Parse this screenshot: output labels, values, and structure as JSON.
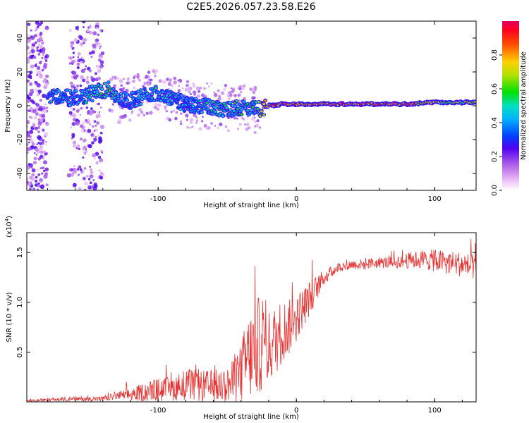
{
  "title": "C2E5.2026.057.23.58.E26",
  "chart_data": [
    {
      "type": "heatmap",
      "description": "spectrogram",
      "xlabel": "Height of straight line (km)",
      "ylabel": "Frequency (Hz)",
      "xlim": [
        -195,
        130
      ],
      "ylim": [
        -50,
        50
      ],
      "xticks": [
        -100,
        0,
        100
      ],
      "xtick_labels": [
        "-100",
        "0",
        "100"
      ],
      "yticks": [
        -40,
        -20,
        0,
        20,
        40
      ],
      "ytick_labels": [
        "-40",
        "-20",
        "0",
        "20",
        "40"
      ],
      "colorbar": {
        "label": "Normalized spectral amplitude",
        "range": [
          0,
          1
        ],
        "ticks": [
          0.0,
          0.2,
          0.4,
          0.6,
          0.8
        ],
        "tick_labels": [
          "0.0",
          "0.2",
          "0.4",
          "0.6",
          "0.8"
        ],
        "colormap": [
          "#ffffff",
          "#d8b0f0",
          "#9040e0",
          "#3000ff",
          "#0080ff",
          "#00e0e0",
          "#00e000",
          "#a0e000",
          "#ffe000",
          "#ff8000",
          "#ff0000",
          "#e00050"
        ]
      },
      "ridge": {
        "x": [
          -175,
          -160,
          -145,
          -135,
          -130,
          -120,
          -110,
          -100,
          -90,
          -80,
          -70,
          -60,
          -50,
          -40,
          -30,
          -25,
          -20,
          -10,
          0,
          20,
          40,
          60,
          80,
          100,
          120,
          130
        ],
        "y": [
          6,
          4,
          8,
          10,
          4,
          3,
          6,
          8,
          4,
          1,
          0,
          -1,
          -2,
          -1,
          -2,
          -2,
          0,
          1,
          1,
          1,
          1,
          1,
          1,
          2,
          2,
          2
        ],
        "amplitude": [
          0.45,
          0.4,
          0.5,
          0.55,
          0.45,
          0.4,
          0.45,
          0.45,
          0.45,
          0.4,
          0.45,
          0.5,
          0.45,
          0.5,
          0.5,
          0.7,
          0.8,
          0.85,
          0.85,
          0.85,
          0.85,
          0.85,
          0.85,
          0.7,
          0.65,
          0.6
        ]
      },
      "noise_bands_x": [
        [
          -195,
          -180
        ],
        [
          -165,
          -140
        ]
      ]
    },
    {
      "type": "line",
      "xlabel": "Height of straight line (km)",
      "ylabel": "SNR (10 * v/v)",
      "y_multiplier_label": "(x10",
      "y_multiplier_exp": "4",
      "xlim": [
        -195,
        130
      ],
      "ylim": [
        0,
        1.7
      ],
      "xticks": [
        -100,
        0,
        100
      ],
      "xtick_labels": [
        "-100",
        "0",
        "100"
      ],
      "yticks": [
        0.5,
        1.0,
        1.5
      ],
      "ytick_labels": [
        "0.5",
        "1.0",
        "1.5"
      ],
      "color": "#e83030",
      "series": [
        {
          "name": "SNR",
          "x": [
            -195,
            -180,
            -160,
            -140,
            -130,
            -120,
            -110,
            -100,
            -90,
            -80,
            -70,
            -60,
            -50,
            -45,
            -40,
            -35,
            -30,
            -25,
            -22,
            -20,
            -15,
            -10,
            -5,
            0,
            5,
            10,
            15,
            20,
            25,
            30,
            40,
            50,
            60,
            70,
            80,
            90,
            100,
            110,
            120,
            130
          ],
          "y": [
            0.01,
            0.02,
            0.03,
            0.03,
            0.06,
            0.07,
            0.1,
            0.12,
            0.13,
            0.18,
            0.15,
            0.15,
            0.17,
            0.2,
            0.3,
            0.45,
            0.5,
            0.62,
            0.55,
            0.55,
            0.62,
            0.72,
            0.75,
            0.85,
            0.95,
            1.05,
            1.15,
            1.25,
            1.3,
            1.35,
            1.38,
            1.38,
            1.4,
            1.4,
            1.42,
            1.43,
            1.42,
            1.4,
            1.38,
            1.35
          ],
          "spread": [
            0.01,
            0.02,
            0.03,
            0.03,
            0.05,
            0.08,
            0.12,
            0.15,
            0.15,
            0.2,
            0.2,
            0.22,
            0.22,
            0.3,
            0.4,
            0.55,
            0.6,
            0.65,
            0.5,
            0.45,
            0.45,
            0.4,
            0.35,
            0.3,
            0.25,
            0.22,
            0.15,
            0.1,
            0.08,
            0.06,
            0.06,
            0.07,
            0.07,
            0.08,
            0.1,
            0.12,
            0.14,
            0.15,
            0.16,
            0.16
          ]
        }
      ]
    }
  ]
}
